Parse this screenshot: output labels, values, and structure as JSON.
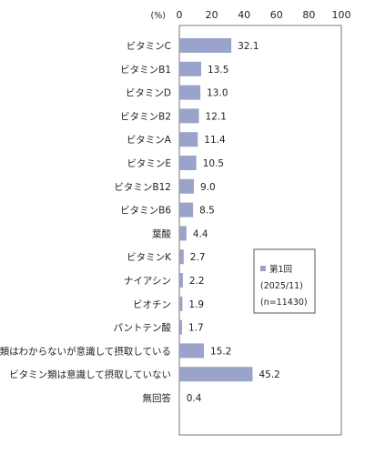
{
  "chart_data": {
    "type": "bar",
    "orientation": "horizontal",
    "unit": "(%)",
    "xlim": [
      0,
      100
    ],
    "xticks": [
      "0",
      "20",
      "40",
      "60",
      "80",
      "100"
    ],
    "grid": false,
    "legend_position": "right-middle",
    "bar_color": "#9aa3c9",
    "categories": [
      "ビタミンC",
      "ビタミンB1",
      "ビタミンD",
      "ビタミンB2",
      "ビタミンA",
      "ビタミンE",
      "ビタミンB12",
      "ビタミンB6",
      "葉酸",
      "ビタミンK",
      "ナイアシン",
      "ビオチン",
      "パントテン酸",
      "種類はわからないが意識して摂取している",
      "ビタミン類は意識して摂取していない",
      "無回答"
    ],
    "series": [
      {
        "name": "第1回",
        "values": [
          32.1,
          13.5,
          13.0,
          12.1,
          11.4,
          10.5,
          9.0,
          8.5,
          4.4,
          2.7,
          2.2,
          1.9,
          1.7,
          15.2,
          45.2,
          0.4
        ]
      }
    ],
    "value_labels": [
      "32.1",
      "13.5",
      "13.0",
      "12.1",
      "11.4",
      "10.5",
      "9.0",
      "8.5",
      "4.4",
      "2.7",
      "2.2",
      "1.9",
      "1.7",
      "15.2",
      "45.2",
      "0.4"
    ],
    "legend": {
      "lines": [
        "第1回",
        "(2025/11)",
        "(n=11430)"
      ]
    }
  }
}
